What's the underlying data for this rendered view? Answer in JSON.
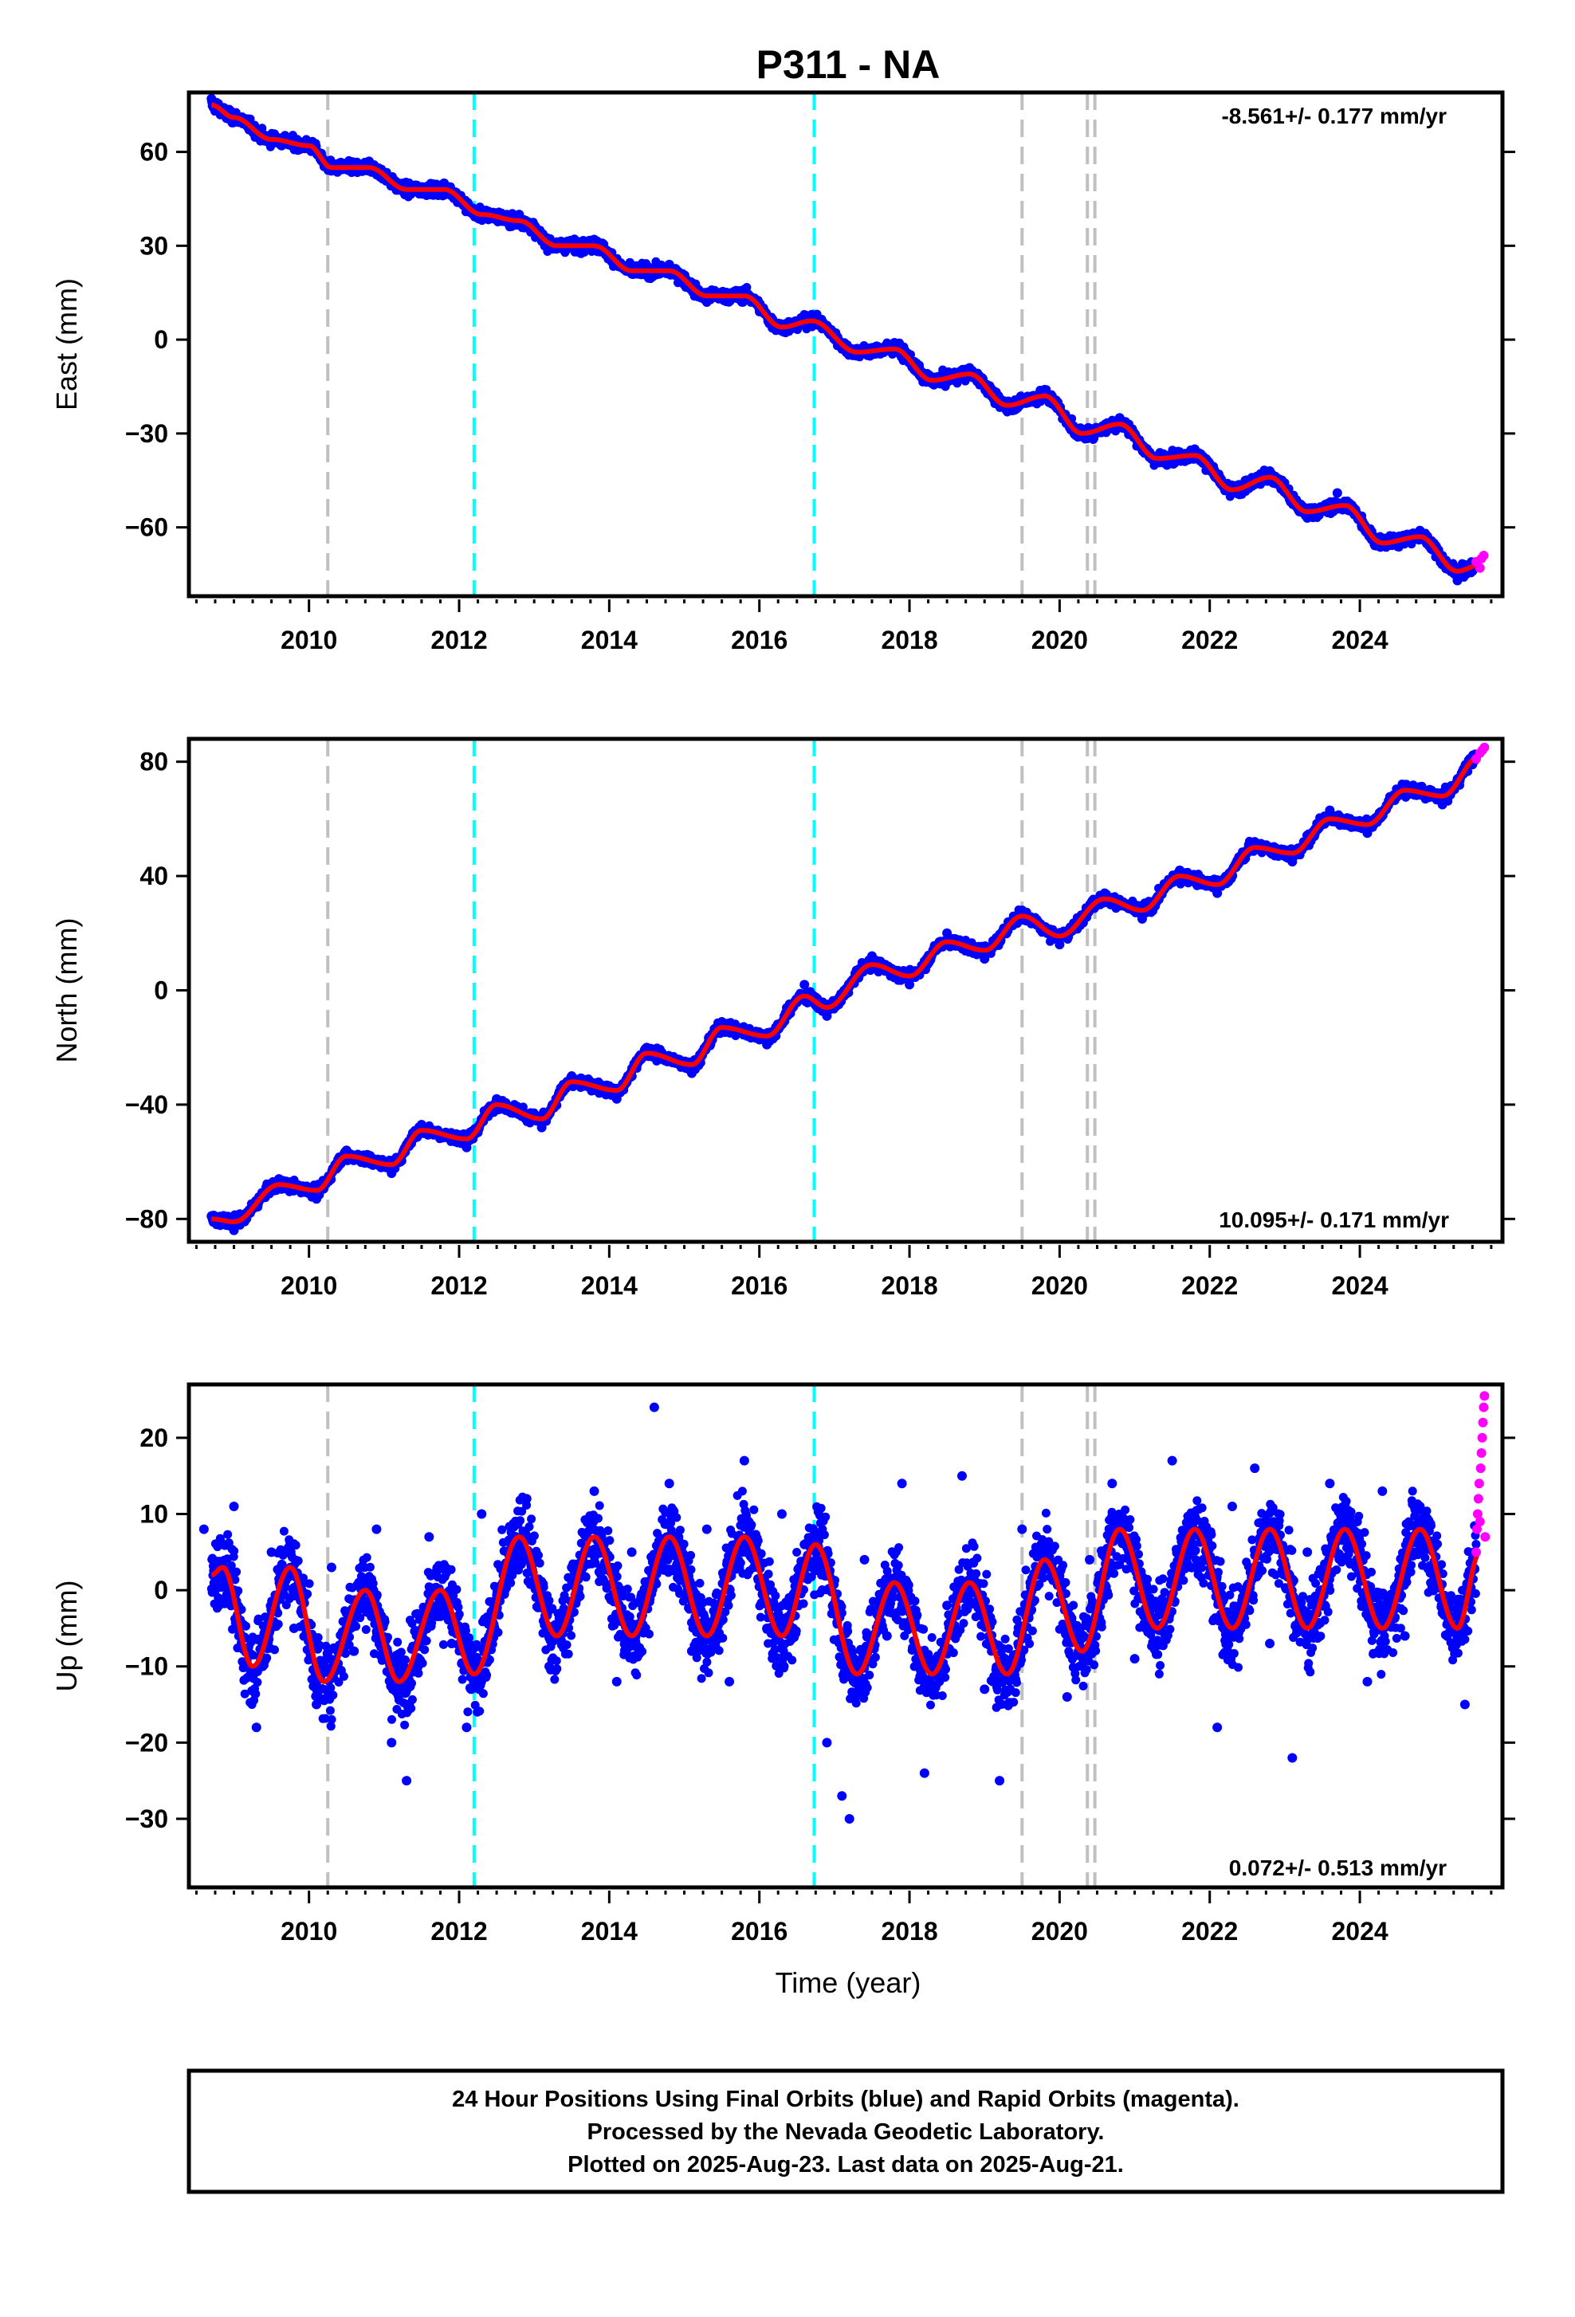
{
  "figure": {
    "title": "P311 - NA",
    "xlabel": "Time (year)",
    "footer": {
      "line1": "24 Hour Positions Using Final Orbits (blue) and Rapid Orbits (magenta).",
      "line2": "Processed by the Nevada Geodetic Laboratory.",
      "line3": "Plotted on 2025-Aug-23. Last data on 2025-Aug-21."
    },
    "colors": {
      "final_orbits": "#0000ff",
      "rapid_orbits": "#ff00ff",
      "model_fit": "#ff0000",
      "event_gray": "#c0c0c0",
      "event_cyan": "#00ffff"
    }
  },
  "chart_data": [
    {
      "type": "scatter",
      "panel": "east",
      "ylabel": "East (mm)",
      "rate_text": "-8.561+/- 0.177 mm/yr",
      "xlim": [
        2008.4,
        2025.9
      ],
      "ylim": [
        -82,
        79
      ],
      "xticks": [
        2010,
        2012,
        2014,
        2016,
        2018,
        2020,
        2022,
        2024
      ],
      "xtick_labels": [
        "2010",
        "2012",
        "2014",
        "2016",
        "2018",
        "2020",
        "2022",
        "2024"
      ],
      "yticks": [
        60,
        30,
        0,
        -30,
        -60
      ],
      "ytick_labels": [
        "60",
        "30",
        "0",
        "−30",
        "−60"
      ],
      "event_lines": [
        {
          "x": 2010.25,
          "style": "gray"
        },
        {
          "x": 2012.2,
          "style": "cyan"
        },
        {
          "x": 2016.73,
          "style": "cyan"
        },
        {
          "x": 2019.5,
          "style": "gray"
        },
        {
          "x": 2020.37,
          "style": "gray"
        },
        {
          "x": 2020.47,
          "style": "gray"
        }
      ],
      "model_fit": {
        "x": [
          2008.7,
          2009.0,
          2009.5,
          2010.0,
          2010.3,
          2010.8,
          2011.3,
          2011.8,
          2012.3,
          2012.8,
          2013.3,
          2013.8,
          2014.3,
          2014.8,
          2015.3,
          2015.8,
          2016.3,
          2016.7,
          2017.3,
          2017.8,
          2018.3,
          2018.8,
          2019.3,
          2019.8,
          2020.3,
          2020.8,
          2021.3,
          2021.8,
          2022.3,
          2022.8,
          2023.3,
          2023.8,
          2024.3,
          2024.8,
          2025.3,
          2025.6
        ],
        "y": [
          75,
          71,
          64,
          62,
          55,
          55,
          48,
          48,
          40,
          38,
          30,
          30,
          22,
          22,
          14,
          14,
          4,
          6,
          -4,
          -3,
          -13,
          -11,
          -21,
          -18,
          -30,
          -27,
          -38,
          -37,
          -48,
          -44,
          -55,
          -53,
          -65,
          -63,
          -74,
          -72
        ]
      },
      "final_orbits": {
        "x": [
          2008.7,
          2009.0,
          2009.5,
          2010.0,
          2010.3,
          2010.8,
          2011.3,
          2011.8,
          2012.3,
          2012.8,
          2013.3,
          2013.8,
          2014.3,
          2014.8,
          2015.3,
          2015.8,
          2016.3,
          2016.7,
          2017.3,
          2017.8,
          2018.3,
          2018.8,
          2019.3,
          2019.8,
          2020.3,
          2020.8,
          2021.3,
          2021.8,
          2022.3,
          2022.8,
          2023.3,
          2023.7,
          2024.3,
          2024.8,
          2025.3,
          2025.5
        ],
        "y": [
          77,
          72,
          63,
          63,
          54,
          57,
          47,
          50,
          39,
          40,
          29,
          32,
          21,
          24,
          12,
          16,
          3,
          8,
          -5,
          -1,
          -14,
          -9,
          -22,
          -16,
          -31,
          -25,
          -39,
          -35,
          -49,
          -42,
          -57,
          -49,
          -66,
          -61,
          -77,
          -74
        ]
      },
      "rapid_orbits": {
        "x": [
          2025.55,
          2025.6,
          2025.62,
          2025.65
        ],
        "y": [
          -71,
          -73,
          -70,
          -69
        ]
      }
    },
    {
      "type": "scatter",
      "panel": "north",
      "ylabel": "North (mm)",
      "rate_text": "10.095+/- 0.171 mm/yr",
      "xlim": [
        2008.4,
        2025.9
      ],
      "ylim": [
        -88,
        88
      ],
      "xticks": [
        2010,
        2012,
        2014,
        2016,
        2018,
        2020,
        2022,
        2024
      ],
      "xtick_labels": [
        "2010",
        "2012",
        "2014",
        "2016",
        "2018",
        "2020",
        "2022",
        "2024"
      ],
      "yticks": [
        80,
        40,
        0,
        -40,
        -80
      ],
      "ytick_labels": [
        "80",
        "40",
        "0",
        "−40",
        "−80"
      ],
      "event_lines": [
        {
          "x": 2010.25,
          "style": "gray"
        },
        {
          "x": 2012.2,
          "style": "cyan"
        },
        {
          "x": 2016.73,
          "style": "cyan"
        },
        {
          "x": 2019.5,
          "style": "gray"
        },
        {
          "x": 2020.37,
          "style": "gray"
        },
        {
          "x": 2020.47,
          "style": "gray"
        }
      ],
      "model_fit": {
        "x": [
          2008.7,
          2009.0,
          2009.6,
          2010.1,
          2010.5,
          2011.1,
          2011.5,
          2012.1,
          2012.5,
          2013.1,
          2013.5,
          2014.1,
          2014.5,
          2015.1,
          2015.5,
          2016.1,
          2016.6,
          2016.9,
          2017.5,
          2018.0,
          2018.5,
          2019.0,
          2019.5,
          2020.0,
          2020.6,
          2021.1,
          2021.6,
          2022.1,
          2022.6,
          2023.1,
          2023.6,
          2024.1,
          2024.6,
          2025.1,
          2025.6
        ],
        "y": [
          -80,
          -81,
          -68,
          -70,
          -58,
          -61,
          -49,
          -52,
          -40,
          -45,
          -32,
          -35,
          -22,
          -26,
          -13,
          -16,
          -2,
          -6,
          9,
          5,
          17,
          14,
          26,
          19,
          32,
          28,
          40,
          37,
          50,
          48,
          60,
          58,
          70,
          68,
          82
        ]
      },
      "final_orbits": {
        "x": [
          2008.7,
          2009.0,
          2009.6,
          2010.1,
          2010.5,
          2011.1,
          2011.5,
          2012.1,
          2012.5,
          2013.1,
          2013.5,
          2014.1,
          2014.5,
          2015.1,
          2015.5,
          2016.1,
          2016.6,
          2016.9,
          2017.5,
          2018.0,
          2018.5,
          2019.0,
          2019.5,
          2020.0,
          2020.6,
          2021.1,
          2021.6,
          2022.1,
          2022.6,
          2023.1,
          2023.6,
          2024.1,
          2024.6,
          2025.1,
          2025.5
        ],
        "y": [
          -79,
          -84,
          -66,
          -73,
          -56,
          -64,
          -47,
          -55,
          -38,
          -48,
          -30,
          -38,
          -20,
          -29,
          -11,
          -19,
          2,
          -9,
          12,
          2,
          20,
          11,
          28,
          16,
          34,
          25,
          42,
          34,
          52,
          45,
          63,
          55,
          72,
          65,
          79
        ]
      },
      "rapid_orbits": {
        "x": [
          2025.55,
          2025.6,
          2025.63,
          2025.66
        ],
        "y": [
          81,
          83,
          84,
          85
        ]
      }
    },
    {
      "type": "scatter",
      "panel": "up",
      "ylabel": "Up (mm)",
      "rate_text": "0.072+/- 0.513 mm/yr",
      "xlim": [
        2008.4,
        2025.9
      ],
      "ylim": [
        -39,
        27
      ],
      "xticks": [
        2010,
        2012,
        2014,
        2016,
        2018,
        2020,
        2022,
        2024
      ],
      "xtick_labels": [
        "2010",
        "2012",
        "2014",
        "2016",
        "2018",
        "2020",
        "2022",
        "2024"
      ],
      "yticks": [
        20,
        10,
        0,
        -10,
        -20,
        -30
      ],
      "ytick_labels": [
        "20",
        "10",
        "0",
        "−10",
        "−20",
        "−30"
      ],
      "event_lines": [
        {
          "x": 2010.25,
          "style": "gray"
        },
        {
          "x": 2012.2,
          "style": "cyan"
        },
        {
          "x": 2016.73,
          "style": "cyan"
        },
        {
          "x": 2019.5,
          "style": "gray"
        },
        {
          "x": 2020.37,
          "style": "gray"
        },
        {
          "x": 2020.47,
          "style": "gray"
        }
      ],
      "model_fit": {
        "x": [
          2008.7,
          2008.85,
          2009.25,
          2009.75,
          2010.2,
          2010.75,
          2011.2,
          2011.75,
          2012.2,
          2012.8,
          2013.3,
          2013.8,
          2014.3,
          2014.8,
          2015.3,
          2015.8,
          2016.3,
          2016.75,
          2017.3,
          2017.8,
          2018.3,
          2018.8,
          2019.3,
          2019.8,
          2020.3,
          2020.8,
          2021.3,
          2021.8,
          2022.3,
          2022.8,
          2023.3,
          2023.8,
          2024.3,
          2024.8,
          2025.3,
          2025.6
        ],
        "y": [
          2,
          3,
          -10,
          3,
          -12,
          0,
          -12,
          0,
          -11,
          7,
          -6,
          7,
          -6,
          7,
          -6,
          7,
          -6,
          6,
          -11,
          1,
          -11,
          1,
          -11,
          4,
          -8,
          8,
          -5,
          8,
          -5,
          8,
          -5,
          8,
          -5,
          8,
          -5,
          5
        ]
      },
      "final_orbits": {
        "x": [
          2008.6,
          2008.8,
          2009.0,
          2009.3,
          2009.5,
          2009.8,
          2010.1,
          2010.3,
          2010.6,
          2010.9,
          2011.1,
          2011.3,
          2011.6,
          2011.9,
          2012.1,
          2012.3,
          2012.6,
          2012.9,
          2013.2,
          2013.5,
          2013.8,
          2014.1,
          2014.3,
          2014.6,
          2014.8,
          2015.1,
          2015.3,
          2015.6,
          2015.8,
          2016.1,
          2016.3,
          2016.6,
          2016.9,
          2017.1,
          2017.2,
          2017.4,
          2017.7,
          2017.9,
          2018.2,
          2018.5,
          2018.7,
          2019.0,
          2019.2,
          2019.5,
          2019.8,
          2020.1,
          2020.4,
          2020.7,
          2021.0,
          2021.2,
          2021.5,
          2021.8,
          2022.1,
          2022.3,
          2022.6,
          2022.8,
          2023.1,
          2023.3,
          2023.6,
          2023.8,
          2024.1,
          2024.3,
          2024.6,
          2024.8,
          2025.1,
          2025.4
        ],
        "y": [
          8,
          -2,
          11,
          -18,
          5,
          -5,
          -15,
          3,
          -8,
          8,
          -20,
          -25,
          7,
          -7,
          -18,
          10,
          2,
          12,
          -10,
          3,
          13,
          -12,
          5,
          24,
          14,
          -8,
          8,
          -12,
          17,
          -5,
          10,
          6,
          -20,
          -27,
          -30,
          4,
          -6,
          14,
          -24,
          -2,
          15,
          -13,
          -25,
          8,
          5,
          -14,
          4,
          14,
          -9,
          -1,
          17,
          3,
          -18,
          11,
          16,
          -7,
          -22,
          5,
          14,
          4,
          -12,
          13,
          -6,
          11,
          -3,
          -15
        ]
      },
      "rapid_orbits": {
        "x": [
          2025.55,
          2025.56,
          2025.57,
          2025.58,
          2025.59,
          2025.6,
          2025.61,
          2025.62,
          2025.63,
          2025.64,
          2025.65,
          2025.66,
          2025.67
        ],
        "y": [
          5,
          8,
          10,
          12,
          14,
          9,
          16,
          18,
          20,
          22,
          24,
          25.5,
          7
        ]
      }
    }
  ]
}
